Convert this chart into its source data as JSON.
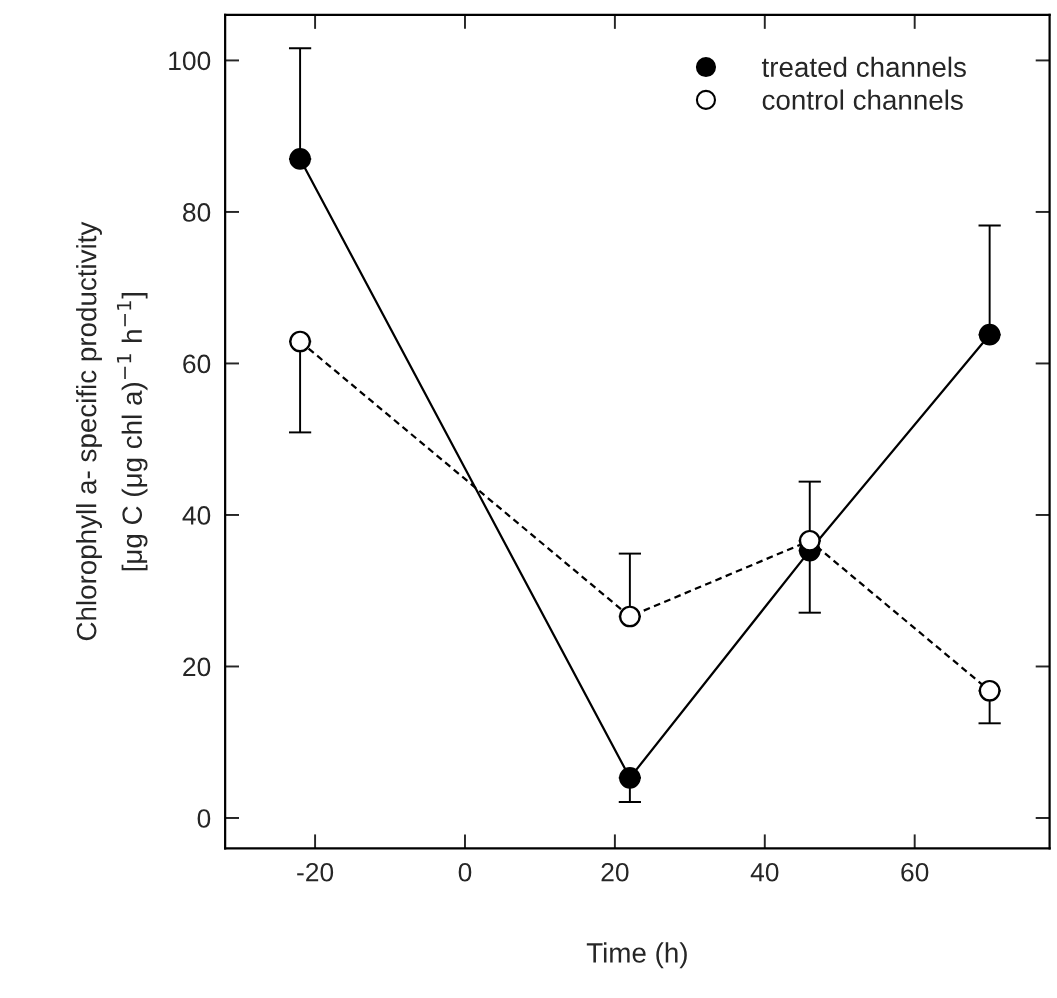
{
  "chart_data": {
    "type": "line",
    "xlabel": "Time (h)",
    "ylabel": "Chlorophyll a- specific productivity\n[μg C (μg chl a)$^{−1}$ h$^{−1}$]",
    "x": [
      -22,
      22,
      46,
      70
    ],
    "series": [
      {
        "name": "treated channels",
        "color": "#000000",
        "line_style": "solid",
        "values": [
          87,
          5.3,
          35.3,
          63.8
        ],
        "errors": [
          [
            87,
            101.6
          ],
          [
            2.1,
            5.3
          ],
          [
            27.1,
            35.3
          ],
          [
            63.8,
            78.2
          ]
        ]
      },
      {
        "name": "control channels",
        "color": "#ffffff",
        "line_style": "dashed",
        "values": [
          62.9,
          26.6,
          36.6,
          16.8
        ],
        "errors": [
          [
            50.9,
            62.9
          ],
          [
            26.6,
            34.9
          ],
          [
            36.6,
            44.4
          ],
          [
            12.5,
            16.8
          ]
        ]
      }
    ],
    "xlim": [
      -32,
      78
    ],
    "ylim": [
      -4,
      106
    ],
    "xticks": [
      -20,
      0,
      20,
      40,
      60
    ],
    "yticks": [
      0,
      20,
      40,
      60,
      80,
      100
    ],
    "marker": "circle",
    "grid": false,
    "legend": "top right"
  }
}
